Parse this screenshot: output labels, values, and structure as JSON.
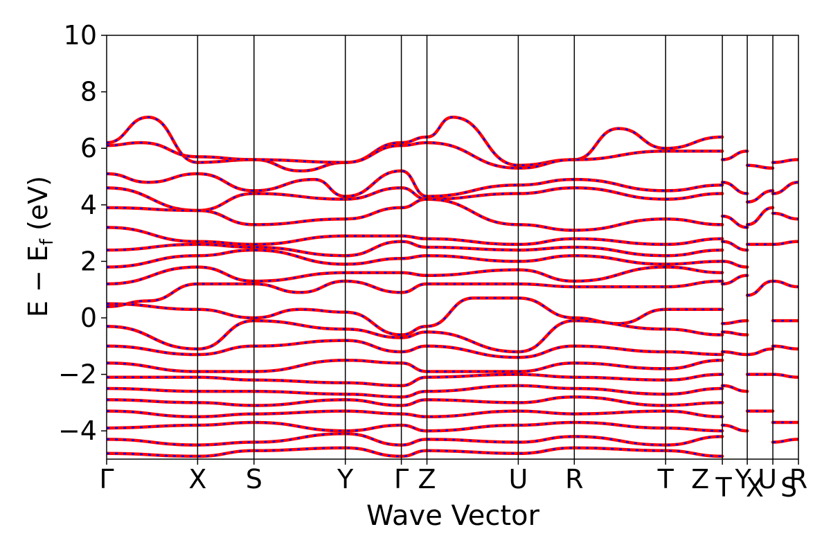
{
  "chart_data": {
    "type": "line",
    "title": "",
    "xlabel": "Wave Vector",
    "ylabel": "E − E",
    "ylabel_sub": "f",
    "ylabel_unit": "(eV)",
    "ylim": [
      -5,
      10
    ],
    "yticks": [
      -4,
      -2,
      0,
      2,
      4,
      6,
      8,
      10
    ],
    "ytick_labels": [
      "−4",
      "−2",
      "0",
      "2",
      "4",
      "6",
      "8",
      "10"
    ],
    "xlim": [
      0,
      1
    ],
    "kpoints": [
      {
        "label": "Γ",
        "x": 0.0
      },
      {
        "label": "X",
        "x": 0.1315
      },
      {
        "label": "S",
        "x": 0.213
      },
      {
        "label": "Y",
        "x": 0.345
      },
      {
        "label": "Γ",
        "x": 0.426
      },
      {
        "label": "Z",
        "x": 0.463
      },
      {
        "label": "U",
        "x": 0.595
      },
      {
        "label": "R",
        "x": 0.676
      },
      {
        "label": "T",
        "x": 0.808
      },
      {
        "label": "Z|T",
        "x": 0.89
      },
      {
        "label": "Y|X",
        "x": 0.926
      },
      {
        "label": "U|S",
        "x": 0.963
      },
      {
        "label": "R",
        "x": 1.0
      }
    ],
    "kpoint_label_display": [
      {
        "label": "Γ",
        "x": 0.0
      },
      {
        "label": "X",
        "x": 0.1315
      },
      {
        "label": "S",
        "x": 0.213
      },
      {
        "label": "Y",
        "x": 0.345
      },
      {
        "label": "Γ",
        "x": 0.426
      },
      {
        "label": "Z",
        "x": 0.463
      },
      {
        "label": "U",
        "x": 0.595
      },
      {
        "label": "R",
        "x": 0.676
      },
      {
        "label": "T",
        "x": 0.808
      },
      {
        "label": "Z",
        "x": 0.858
      },
      {
        "label": "T",
        "x": 0.892
      },
      {
        "label": "Y",
        "x": 0.92
      },
      {
        "label": "X",
        "x": 0.937
      },
      {
        "label": "U",
        "x": 0.955
      },
      {
        "label": "S",
        "x": 0.986
      },
      {
        "label": "R",
        "x": 1.0
      }
    ],
    "series": [
      {
        "name": "",
        "color": "#ff0000"
      },
      {
        "name": "",
        "color": "#0000ff",
        "style": "dashed"
      }
    ],
    "bands": [
      {
        "x": [
          0,
          0.06,
          0.1315,
          0.213,
          0.28,
          0.345,
          0.426,
          0.463,
          0.5,
          0.595,
          0.676,
          0.74,
          0.808,
          0.89
        ],
        "y": [
          6.2,
          7.1,
          5.5,
          5.6,
          5.2,
          5.5,
          6.2,
          6.4,
          7.1,
          5.4,
          5.6,
          6.7,
          6.0,
          6.4
        ]
      },
      {
        "x": [
          0,
          0.05,
          0.1315,
          0.213,
          0.345,
          0.426,
          0.463,
          0.595,
          0.676,
          0.808,
          0.89
        ],
        "y": [
          6.1,
          6.2,
          5.7,
          5.6,
          5.5,
          6.1,
          6.2,
          5.3,
          5.6,
          5.9,
          5.9
        ]
      },
      {
        "x": [
          0,
          0.06,
          0.1315,
          0.213,
          0.3,
          0.345,
          0.426,
          0.463,
          0.595,
          0.676,
          0.808,
          0.89
        ],
        "y": [
          5.1,
          4.8,
          5.1,
          4.5,
          4.9,
          4.3,
          5.2,
          4.3,
          4.7,
          4.9,
          4.5,
          4.7
        ]
      },
      {
        "x": [
          0,
          0.1315,
          0.213,
          0.345,
          0.426,
          0.463,
          0.595,
          0.676,
          0.808,
          0.89
        ],
        "y": [
          4.6,
          3.8,
          4.4,
          4.2,
          4.6,
          4.2,
          4.4,
          4.6,
          4.2,
          4.4
        ]
      },
      {
        "x": [
          0,
          0.1315,
          0.213,
          0.345,
          0.426,
          0.463,
          0.595,
          0.676,
          0.808,
          0.89
        ],
        "y": [
          3.9,
          3.8,
          3.3,
          3.5,
          3.9,
          4.2,
          3.3,
          3.1,
          3.5,
          3.3
        ]
      },
      {
        "x": [
          0,
          0.1315,
          0.213,
          0.345,
          0.426,
          0.463,
          0.595,
          0.676,
          0.808,
          0.89
        ],
        "y": [
          3.2,
          2.7,
          2.6,
          2.9,
          2.9,
          2.8,
          2.6,
          2.8,
          2.6,
          2.8
        ]
      },
      {
        "x": [
          0,
          0.1315,
          0.213,
          0.345,
          0.426,
          0.463,
          0.595,
          0.676,
          0.808,
          0.89
        ],
        "y": [
          2.4,
          2.6,
          2.5,
          2.2,
          2.7,
          2.5,
          2.4,
          2.5,
          2.2,
          2.4
        ]
      },
      {
        "x": [
          0,
          0.1315,
          0.213,
          0.345,
          0.426,
          0.463,
          0.595,
          0.676,
          0.808,
          0.89
        ],
        "y": [
          1.8,
          2.2,
          2.4,
          1.9,
          2.1,
          2.2,
          2.0,
          2.2,
          1.9,
          2.0
        ]
      },
      {
        "x": [
          0,
          0.1315,
          0.213,
          0.345,
          0.426,
          0.463,
          0.595,
          0.676,
          0.808,
          0.89
        ],
        "y": [
          1.2,
          1.8,
          1.3,
          1.6,
          1.6,
          1.5,
          1.7,
          1.3,
          1.8,
          1.6
        ]
      },
      {
        "x": [
          0,
          0.06,
          0.1315,
          0.213,
          0.28,
          0.345,
          0.426,
          0.463,
          0.595,
          0.676,
          0.808,
          0.89
        ],
        "y": [
          0.4,
          0.6,
          1.2,
          1.2,
          0.9,
          1.3,
          0.9,
          1.2,
          1.2,
          1.1,
          1.1,
          1.3
        ]
      },
      {
        "x": [
          0,
          0.1315,
          0.213,
          0.28,
          0.345,
          0.426,
          0.463,
          0.53,
          0.595,
          0.676,
          0.74,
          0.808,
          0.89
        ],
        "y": [
          0.5,
          0.3,
          0.0,
          0.3,
          0.2,
          -0.6,
          -0.3,
          0.7,
          0.7,
          0.0,
          -0.2,
          0.3,
          0.3
        ]
      },
      {
        "x": [
          0,
          0.1315,
          0.213,
          0.345,
          0.426,
          0.463,
          0.595,
          0.676,
          0.808,
          0.89
        ],
        "y": [
          -0.3,
          -1.1,
          -0.1,
          -0.4,
          -0.7,
          -0.5,
          -1.2,
          -0.1,
          -0.4,
          -0.6
        ]
      },
      {
        "x": [
          0,
          0.1315,
          0.213,
          0.345,
          0.426,
          0.463,
          0.595,
          0.676,
          0.808,
          0.89
        ],
        "y": [
          -1.0,
          -1.3,
          -1.0,
          -0.8,
          -1.2,
          -1.0,
          -1.4,
          -1.0,
          -1.2,
          -1.3
        ]
      },
      {
        "x": [
          0,
          0.1315,
          0.213,
          0.345,
          0.426,
          0.463,
          0.595,
          0.676,
          0.808,
          0.89
        ],
        "y": [
          -1.6,
          -1.9,
          -1.9,
          -1.5,
          -1.6,
          -1.9,
          -1.9,
          -1.6,
          -1.8,
          -1.5
        ]
      },
      {
        "x": [
          0,
          0.1315,
          0.213,
          0.345,
          0.426,
          0.463,
          0.595,
          0.676,
          0.808,
          0.89
        ],
        "y": [
          -2.1,
          -2.1,
          -2.2,
          -2.3,
          -2.4,
          -2.1,
          -2.0,
          -2.1,
          -2.2,
          -2.0
        ]
      },
      {
        "x": [
          0,
          0.1315,
          0.213,
          0.345,
          0.426,
          0.463,
          0.595,
          0.676,
          0.808,
          0.89
        ],
        "y": [
          -2.5,
          -2.6,
          -2.6,
          -2.7,
          -2.8,
          -2.6,
          -2.4,
          -2.5,
          -2.7,
          -2.5
        ]
      },
      {
        "x": [
          0,
          0.1315,
          0.213,
          0.345,
          0.426,
          0.463,
          0.595,
          0.676,
          0.808,
          0.89
        ],
        "y": [
          -2.9,
          -3.0,
          -3.1,
          -2.9,
          -3.1,
          -2.9,
          -3.0,
          -2.8,
          -3.1,
          -3.0
        ]
      },
      {
        "x": [
          0,
          0.1315,
          0.213,
          0.345,
          0.426,
          0.463,
          0.595,
          0.676,
          0.808,
          0.89
        ],
        "y": [
          -3.3,
          -3.5,
          -3.4,
          -3.3,
          -3.4,
          -3.5,
          -3.3,
          -3.4,
          -3.3,
          -3.5
        ]
      },
      {
        "x": [
          0,
          0.1315,
          0.213,
          0.345,
          0.426,
          0.463,
          0.595,
          0.676,
          0.808,
          0.89
        ],
        "y": [
          -3.9,
          -3.8,
          -3.7,
          -4.0,
          -3.8,
          -4.0,
          -3.8,
          -3.7,
          -3.9,
          -4.0
        ]
      },
      {
        "x": [
          0,
          0.1315,
          0.213,
          0.345,
          0.426,
          0.463,
          0.595,
          0.676,
          0.808,
          0.89
        ],
        "y": [
          -4.3,
          -4.5,
          -4.4,
          -4.1,
          -4.5,
          -4.3,
          -4.4,
          -4.2,
          -4.5,
          -4.2
        ]
      },
      {
        "x": [
          0,
          0.1315,
          0.213,
          0.345,
          0.426,
          0.463,
          0.595,
          0.676,
          0.808,
          0.89
        ],
        "y": [
          -4.8,
          -4.9,
          -4.7,
          -4.6,
          -4.9,
          -4.7,
          -4.8,
          -4.6,
          -4.7,
          -4.9
        ]
      },
      {
        "x": [
          0.89,
          0.926
        ],
        "y": [
          5.6,
          5.9
        ]
      },
      {
        "x": [
          0.89,
          0.926
        ],
        "y": [
          4.8,
          4.4
        ]
      },
      {
        "x": [
          0.89,
          0.926
        ],
        "y": [
          3.6,
          3.2
        ]
      },
      {
        "x": [
          0.89,
          0.926
        ],
        "y": [
          2.7,
          2.4
        ]
      },
      {
        "x": [
          0.89,
          0.926
        ],
        "y": [
          2.0,
          1.8
        ]
      },
      {
        "x": [
          0.89,
          0.926
        ],
        "y": [
          1.2,
          1.5
        ]
      },
      {
        "x": [
          0.89,
          0.926
        ],
        "y": [
          -0.2,
          -0.1
        ]
      },
      {
        "x": [
          0.89,
          0.926
        ],
        "y": [
          -0.5,
          -0.6
        ]
      },
      {
        "x": [
          0.89,
          0.926
        ],
        "y": [
          -1.2,
          -1.3
        ]
      },
      {
        "x": [
          0.89,
          0.926
        ],
        "y": [
          -2.4,
          -2.6
        ]
      },
      {
        "x": [
          0.89,
          0.926
        ],
        "y": [
          -3.8,
          -4.0
        ]
      },
      {
        "x": [
          0.926,
          0.963
        ],
        "y": [
          5.4,
          5.3
        ]
      },
      {
        "x": [
          0.926,
          0.963
        ],
        "y": [
          4.1,
          4.5
        ]
      },
      {
        "x": [
          0.926,
          0.963
        ],
        "y": [
          3.3,
          3.9
        ]
      },
      {
        "x": [
          0.926,
          0.963
        ],
        "y": [
          2.6,
          2.6
        ]
      },
      {
        "x": [
          0.926,
          0.963
        ],
        "y": [
          0.8,
          1.3
        ]
      },
      {
        "x": [
          0.926,
          0.963
        ],
        "y": [
          -1.3,
          -1.1
        ]
      },
      {
        "x": [
          0.926,
          0.963
        ],
        "y": [
          -2.0,
          -2.0
        ]
      },
      {
        "x": [
          0.926,
          0.963
        ],
        "y": [
          -3.3,
          -3.3
        ]
      },
      {
        "x": [
          0.963,
          1.0
        ],
        "y": [
          5.5,
          5.6
        ]
      },
      {
        "x": [
          0.963,
          1.0
        ],
        "y": [
          4.4,
          4.8
        ]
      },
      {
        "x": [
          0.963,
          1.0
        ],
        "y": [
          3.7,
          3.5
        ]
      },
      {
        "x": [
          0.963,
          1.0
        ],
        "y": [
          2.6,
          2.7
        ]
      },
      {
        "x": [
          0.963,
          1.0
        ],
        "y": [
          1.3,
          1.1
        ]
      },
      {
        "x": [
          0.963,
          1.0
        ],
        "y": [
          -0.1,
          -0.1
        ]
      },
      {
        "x": [
          0.963,
          1.0
        ],
        "y": [
          -1.0,
          -1.1
        ]
      },
      {
        "x": [
          0.963,
          1.0
        ],
        "y": [
          -2.0,
          -2.1
        ]
      },
      {
        "x": [
          0.963,
          1.0
        ],
        "y": [
          -3.7,
          -3.7
        ]
      },
      {
        "x": [
          0.963,
          1.0
        ],
        "y": [
          -4.4,
          -4.3
        ]
      }
    ]
  }
}
